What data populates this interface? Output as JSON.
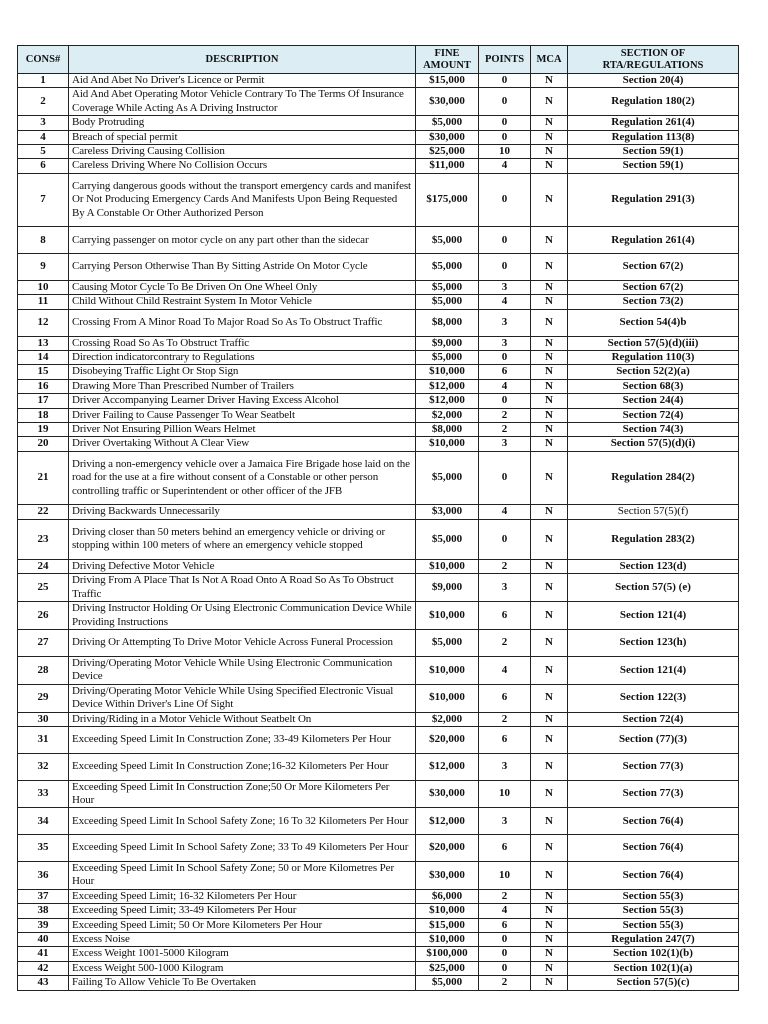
{
  "headers": {
    "cons": "CONS#",
    "description": "DESCRIPTION",
    "fine": "FINE AMOUNT",
    "points": "POINTS",
    "mca": "MCA",
    "section": "SECTION OF RTA/REGULATIONS"
  },
  "rows": [
    {
      "cons": "1",
      "description": "Aid And Abet No Driver's Licence or Permit",
      "fine": "$15,000",
      "points": "0",
      "mca": "N",
      "section": "Section 20(4)"
    },
    {
      "cons": "2",
      "description": "Aid And Abet Operating Motor Vehicle Contrary To The Terms Of Insurance Coverage While Acting As A Driving Instructor",
      "fine": "$30,000",
      "points": "0",
      "mca": "N",
      "section": "Regulation 180(2)"
    },
    {
      "cons": "3",
      "description": "Body Protruding",
      "fine": "$5,000",
      "points": "0",
      "mca": "N",
      "section": "Regulation 261(4)"
    },
    {
      "cons": "4",
      "description": "Breach of special permit",
      "fine": "$30,000",
      "points": "0",
      "mca": "N",
      "section": "Regulation 113(8)"
    },
    {
      "cons": "5",
      "description": "Careless Driving Causing Collision",
      "fine": "$25,000",
      "points": "10",
      "mca": "N",
      "section": "Section 59(1)"
    },
    {
      "cons": "6",
      "description": "Careless Driving Where No Collision Occurs",
      "fine": "$11,000",
      "points": "4",
      "mca": "N",
      "section": "Section 59(1)"
    },
    {
      "cons": "7",
      "description": "Carrying dangerous goods without the transport emergency cards and manifest  Or Not Producing Emergency Cards And Manifests Upon Being Requested  By A Constable Or Other Authorized Person",
      "fine": "$175,000",
      "points": "0",
      "mca": "N",
      "section": "Regulation 291(3)"
    },
    {
      "cons": "8",
      "description": "Carrying passenger on motor cycle on any part other than the sidecar",
      "fine": "$5,000",
      "points": "0",
      "mca": "N",
      "section": "Regulation 261(4)"
    },
    {
      "cons": "9",
      "description": "Carrying Person Otherwise Than By Sitting Astride On Motor Cycle",
      "fine": "$5,000",
      "points": "0",
      "mca": "N",
      "section": "Section 67(2)"
    },
    {
      "cons": "10",
      "description": "Causing Motor Cycle To Be Driven On One Wheel Only",
      "fine": "$5,000",
      "points": "3",
      "mca": "N",
      "section": "Section 67(2)"
    },
    {
      "cons": "11",
      "description": "Child Without Child Restraint System In Motor Vehicle",
      "fine": "$5,000",
      "points": "4",
      "mca": "N",
      "section": "Section 73(2)"
    },
    {
      "cons": "12",
      "description": "Crossing From A Minor Road To Major Road So As To Obstruct Traffic",
      "fine": "$8,000",
      "points": "3",
      "mca": "N",
      "section": "Section 54(4)b"
    },
    {
      "cons": "13",
      "description": "Crossing Road So As To Obstruct Traffic",
      "fine": "$9,000",
      "points": "3",
      "mca": "N",
      "section": "Section 57(5)(d)(iii)"
    },
    {
      "cons": "14",
      "description": "Direction indicatorcontrary to Regulations",
      "fine": "$5,000",
      "points": "0",
      "mca": "N",
      "section": "Regulation 110(3)"
    },
    {
      "cons": "15",
      "description": "Disobeying Traffic Light Or Stop Sign",
      "fine": "$10,000",
      "points": "6",
      "mca": "N",
      "section": "Section 52(2)(a)"
    },
    {
      "cons": "16",
      "description": "Drawing More Than Prescribed Number of Trailers",
      "fine": "$12,000",
      "points": "4",
      "mca": "N",
      "section": "Section 68(3)"
    },
    {
      "cons": "17",
      "description": "Driver Accompanying Learner Driver Having Excess Alcohol",
      "fine": "$12,000",
      "points": "0",
      "mca": "N",
      "section": "Section 24(4)"
    },
    {
      "cons": "18",
      "description": "Driver Failing to Cause Passenger To Wear Seatbelt",
      "fine": "$2,000",
      "points": "2",
      "mca": "N",
      "section": "Section 72(4)"
    },
    {
      "cons": "19",
      "description": "Driver Not Ensuring Pillion Wears Helmet",
      "fine": "$8,000",
      "points": "2",
      "mca": "N",
      "section": "Section 74(3)"
    },
    {
      "cons": "20",
      "description": "Driver Overtaking Without A Clear View",
      "fine": "$10,000",
      "points": "3",
      "mca": "N",
      "section": "Section 57(5)(d)(i)"
    },
    {
      "cons": "21",
      "description": "Driving a non-emergency  vehicle over a Jamaica Fire Brigade hose laid on the road for the use at a fire without consent of a Constable or other person controlling traffic or Superintendent or other officer of the JFB",
      "fine": "$5,000",
      "points": "0",
      "mca": "N",
      "section": "Regulation 284(2)"
    },
    {
      "cons": "22",
      "description": "Driving Backwards Unnecessarily",
      "fine": "$3,000",
      "points": "4",
      "mca": "N",
      "section": "Section 57(5)(f)"
    },
    {
      "cons": "23",
      "description": "Driving closer than 50 meters behind an emergency vehicle or driving or stopping within 100 meters of where an emergency vehicle stopped",
      "fine": "$5,000",
      "points": "0",
      "mca": "N",
      "section": "Regulation 283(2)"
    },
    {
      "cons": "24",
      "description": "Driving Defective Motor Vehicle",
      "fine": "$10,000",
      "points": "2",
      "mca": "N",
      "section": "Section 123(d)"
    },
    {
      "cons": "25",
      "description": "Driving From A Place That Is Not A Road Onto A Road So As To Obstruct Traffic",
      "fine": "$9,000",
      "points": "3",
      "mca": "N",
      "section": "Section 57(5) (e)"
    },
    {
      "cons": "26",
      "description": "Driving Instructor Holding Or Using Electronic Communication Device While Providing Instructions",
      "fine": "$10,000",
      "points": "6",
      "mca": "N",
      "section": "Section 121(4)"
    },
    {
      "cons": "27",
      "description": "Driving Or Attempting To Drive Motor Vehicle Across Funeral Procession",
      "fine": "$5,000",
      "points": "2",
      "mca": "N",
      "section": "Section 123(h)"
    },
    {
      "cons": "28",
      "description": "Driving/Operating Motor Vehicle While Using Electronic Communication Device",
      "fine": "$10,000",
      "points": "4",
      "mca": "N",
      "section": "Section 121(4)"
    },
    {
      "cons": "29",
      "description": "Driving/Operating Motor Vehicle While Using Specified Electronic Visual Device Within Driver's Line Of Sight",
      "fine": "$10,000",
      "points": "6",
      "mca": "N",
      "section": "Section 122(3)"
    },
    {
      "cons": "30",
      "description": "Driving/Riding in a Motor Vehicle Without Seatbelt On",
      "fine": "$2,000",
      "points": "2",
      "mca": "N",
      "section": "Section 72(4)"
    },
    {
      "cons": "31",
      "description": "Exceeding Speed Limit In Construction Zone; 33-49 Kilometers Per Hour",
      "fine": "$20,000",
      "points": "6",
      "mca": "N",
      "section": "Section (77)(3)"
    },
    {
      "cons": "32",
      "description": "Exceeding Speed Limit In Construction Zone;16-32 Kilometers Per Hour",
      "fine": "$12,000",
      "points": "3",
      "mca": "N",
      "section": "Section 77(3)"
    },
    {
      "cons": "33",
      "description": "Exceeding Speed Limit In Construction Zone;50 Or More Kilometers Per Hour",
      "fine": "$30,000",
      "points": "10",
      "mca": "N",
      "section": "Section 77(3)"
    },
    {
      "cons": "34",
      "description": "Exceeding Speed Limit In School Safety Zone; 16 To 32 Kilometers Per Hour",
      "fine": "$12,000",
      "points": "3",
      "mca": "N",
      "section": "Section 76(4)"
    },
    {
      "cons": "35",
      "description": "Exceeding Speed Limit In School Safety Zone; 33 To 49 Kilometers Per Hour",
      "fine": "$20,000",
      "points": "6",
      "mca": "N",
      "section": "Section 76(4)"
    },
    {
      "cons": "36",
      "description": "Exceeding Speed Limit In School Safety Zone; 50 or More Kilometres Per Hour",
      "fine": "$30,000",
      "points": "10",
      "mca": "N",
      "section": "Section 76(4)"
    },
    {
      "cons": "37",
      "description": "Exceeding Speed Limit; 16-32 Kilometers Per Hour",
      "fine": "$6,000",
      "points": "2",
      "mca": "N",
      "section": "Section 55(3)"
    },
    {
      "cons": "38",
      "description": "Exceeding Speed Limit; 33-49 Kilometers Per Hour",
      "fine": "$10,000",
      "points": "4",
      "mca": "N",
      "section": "Section 55(3)"
    },
    {
      "cons": "39",
      "description": "Exceeding Speed Limit; 50 Or More Kilometers Per Hour",
      "fine": "$15,000",
      "points": "6",
      "mca": "N",
      "section": "Section 55(3)"
    },
    {
      "cons": "40",
      "description": "Excess Noise",
      "fine": "$10,000",
      "points": "0",
      "mca": "N",
      "section": "Regulation 247(7)"
    },
    {
      "cons": "41",
      "description": "Excess Weight 1001-5000 Kilogram",
      "fine": "$100,000",
      "points": "0",
      "mca": "N",
      "section": "Section 102(1)(b)"
    },
    {
      "cons": "42",
      "description": "Excess Weight 500-1000 Kilogram",
      "fine": "$25,000",
      "points": "0",
      "mca": "N",
      "section": "Section 102(1)(a)"
    },
    {
      "cons": "43",
      "description": "Failing To Allow Vehicle To Be Overtaken",
      "fine": "$5,000",
      "points": "2",
      "mca": "N",
      "section": "Section 57(5)(c)"
    }
  ]
}
